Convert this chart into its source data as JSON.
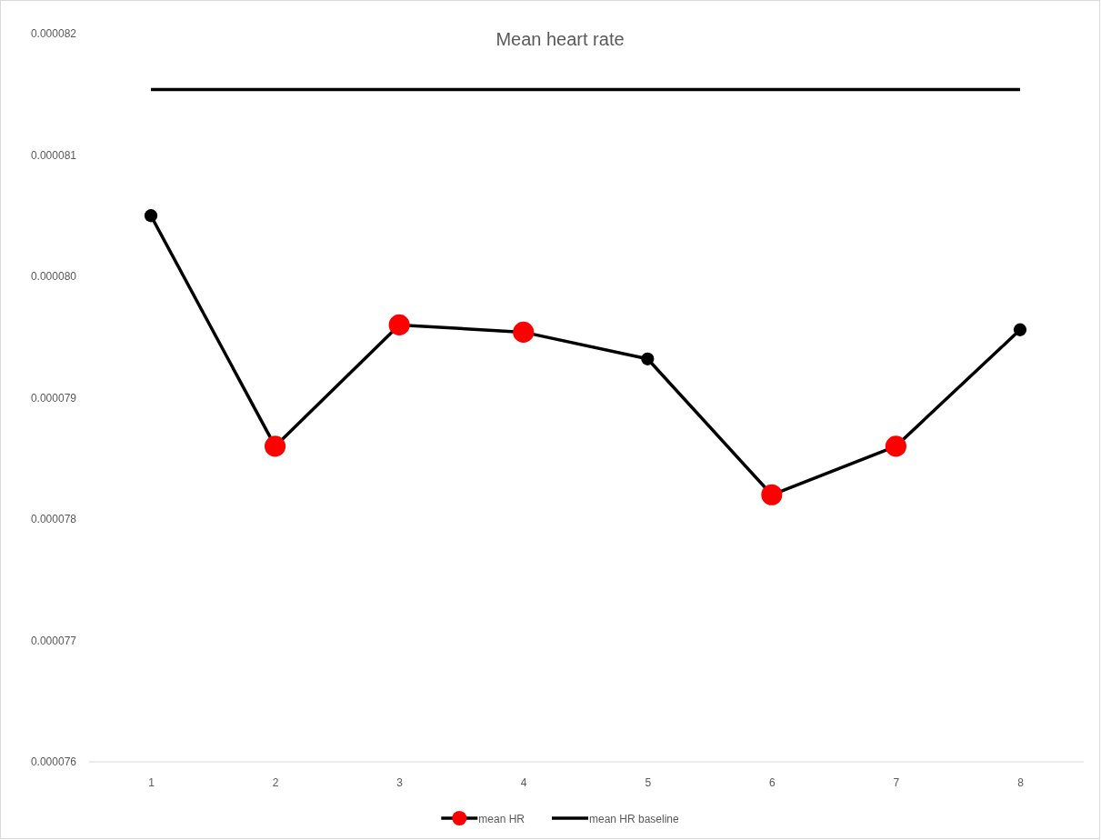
{
  "chart_data": {
    "type": "line",
    "title": "Mean heart rate",
    "categories": [
      "1",
      "2",
      "3",
      "4",
      "5",
      "6",
      "7",
      "8"
    ],
    "ylim": [
      7.6e-05,
      8.2e-05
    ],
    "yticks": [
      {
        "value": 7.6e-05,
        "label": "0.000076"
      },
      {
        "value": 7.7e-05,
        "label": "0.000077"
      },
      {
        "value": 7.8e-05,
        "label": "0.000078"
      },
      {
        "value": 7.9e-05,
        "label": "0.000079"
      },
      {
        "value": 8e-05,
        "label": "0.000080"
      },
      {
        "value": 8.1e-05,
        "label": "0.000081"
      },
      {
        "value": 8.2e-05,
        "label": "0.000082"
      }
    ],
    "grid": false,
    "legend": "bottom",
    "line_style": "solid",
    "series": [
      {
        "name": "mean HR",
        "color": "#000000",
        "marker": "circle",
        "colors": [
          "#000000",
          "#ff0000",
          "#ff0000",
          "#ff0000",
          "#000000",
          "#ff0000",
          "#ff0000",
          "#000000"
        ],
        "values": [
          8.05e-05,
          7.86e-05,
          7.96e-05,
          7.954e-05,
          7.932e-05,
          7.82e-05,
          7.86e-05,
          7.956e-05
        ]
      },
      {
        "name": "mean HR baseline",
        "color": "#000000",
        "marker": "none",
        "values": [
          8.154e-05,
          8.154e-05,
          8.154e-05,
          8.154e-05,
          8.154e-05,
          8.154e-05,
          8.154e-05,
          8.154e-05
        ]
      }
    ]
  }
}
